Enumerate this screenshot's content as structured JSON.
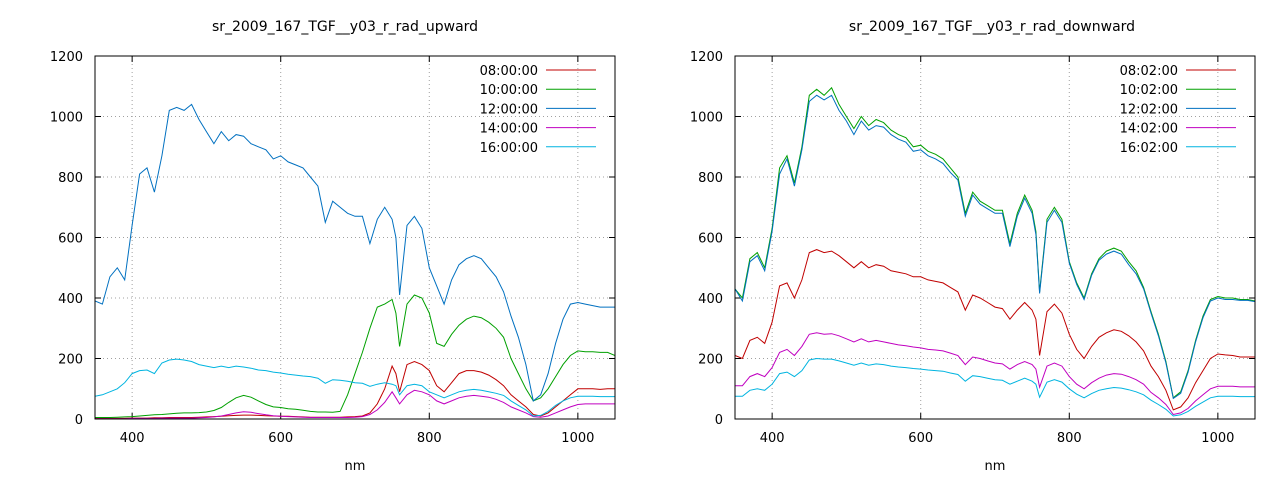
{
  "chart_data": [
    {
      "type": "line",
      "title": "sr_2009_167_TGF__y03_r_rad_upward",
      "xlabel": "nm",
      "ylabel": "",
      "xlim": [
        350,
        1050
      ],
      "ylim": [
        0,
        1200
      ],
      "x_ticks": [
        400,
        600,
        800,
        1000
      ],
      "y_ticks": [
        0,
        200,
        400,
        600,
        800,
        1000,
        1200
      ],
      "grid": true,
      "legend": "top-right",
      "x": [
        350,
        360,
        370,
        380,
        390,
        400,
        410,
        420,
        430,
        440,
        450,
        460,
        470,
        480,
        490,
        500,
        510,
        520,
        530,
        540,
        550,
        560,
        570,
        580,
        590,
        600,
        610,
        620,
        630,
        640,
        650,
        660,
        670,
        680,
        690,
        700,
        710,
        720,
        730,
        740,
        750,
        755,
        760,
        770,
        780,
        790,
        800,
        810,
        820,
        830,
        840,
        850,
        860,
        870,
        880,
        890,
        900,
        910,
        920,
        930,
        940,
        950,
        960,
        970,
        980,
        990,
        1000,
        1010,
        1020,
        1030,
        1040,
        1050
      ],
      "series": [
        {
          "name": "08:00:00",
          "color": "#c00000",
          "values": [
            2,
            2,
            2,
            2,
            2,
            3,
            3,
            3,
            4,
            4,
            5,
            5,
            5,
            5,
            6,
            7,
            8,
            9,
            11,
            12,
            13,
            13,
            12,
            11,
            10,
            9,
            9,
            8,
            7,
            6,
            6,
            6,
            6,
            6,
            7,
            8,
            10,
            20,
            50,
            100,
            175,
            150,
            90,
            180,
            190,
            180,
            160,
            110,
            90,
            120,
            150,
            160,
            160,
            155,
            145,
            130,
            110,
            80,
            60,
            40,
            15,
            10,
            20,
            40,
            60,
            80,
            100,
            100,
            100,
            98,
            100,
            100
          ]
        },
        {
          "name": "10:00:00",
          "color": "#00a000",
          "values": [
            5,
            5,
            5,
            6,
            7,
            8,
            10,
            12,
            14,
            15,
            17,
            19,
            20,
            20,
            21,
            23,
            28,
            38,
            55,
            70,
            78,
            72,
            60,
            48,
            40,
            38,
            34,
            32,
            29,
            25,
            23,
            23,
            22,
            25,
            80,
            150,
            220,
            300,
            370,
            380,
            395,
            350,
            240,
            380,
            410,
            400,
            350,
            250,
            240,
            280,
            310,
            330,
            340,
            335,
            320,
            300,
            270,
            200,
            150,
            100,
            60,
            70,
            100,
            140,
            180,
            210,
            225,
            222,
            222,
            220,
            220,
            210
          ]
        },
        {
          "name": "12:00:00",
          "color": "#0070c0",
          "values": [
            390,
            380,
            470,
            500,
            460,
            640,
            810,
            830,
            750,
            870,
            1020,
            1030,
            1020,
            1040,
            990,
            950,
            910,
            950,
            920,
            940,
            935,
            910,
            900,
            890,
            860,
            870,
            850,
            840,
            830,
            800,
            770,
            650,
            720,
            700,
            680,
            670,
            670,
            580,
            660,
            700,
            660,
            600,
            410,
            640,
            670,
            630,
            500,
            440,
            380,
            460,
            510,
            530,
            540,
            530,
            500,
            470,
            420,
            340,
            270,
            180,
            60,
            80,
            150,
            250,
            330,
            380,
            385,
            380,
            375,
            370,
            370,
            370
          ]
        },
        {
          "name": "14:00:00",
          "color": "#c000c0",
          "values": [
            1,
            1,
            1,
            1,
            1,
            2,
            2,
            2,
            2,
            3,
            3,
            3,
            3,
            3,
            4,
            5,
            7,
            10,
            15,
            20,
            24,
            22,
            18,
            14,
            11,
            9,
            8,
            7,
            6,
            5,
            5,
            5,
            5,
            5,
            5,
            6,
            8,
            15,
            30,
            55,
            90,
            70,
            50,
            80,
            95,
            90,
            80,
            60,
            50,
            60,
            70,
            75,
            78,
            75,
            72,
            65,
            55,
            40,
            30,
            20,
            8,
            6,
            10,
            20,
            30,
            40,
            48,
            50,
            50,
            50,
            50,
            50
          ]
        },
        {
          "name": "16:00:00",
          "color": "#00b4e0",
          "values": [
            75,
            80,
            90,
            100,
            120,
            150,
            160,
            162,
            150,
            185,
            195,
            198,
            195,
            190,
            180,
            175,
            170,
            175,
            170,
            175,
            172,
            168,
            162,
            160,
            155,
            152,
            148,
            145,
            142,
            140,
            135,
            118,
            130,
            128,
            125,
            120,
            118,
            108,
            115,
            120,
            115,
            110,
            80,
            110,
            115,
            110,
            90,
            80,
            70,
            80,
            90,
            95,
            98,
            95,
            90,
            85,
            78,
            60,
            45,
            30,
            10,
            12,
            25,
            45,
            60,
            70,
            75,
            75,
            75,
            74,
            74,
            74
          ]
        }
      ]
    },
    {
      "type": "line",
      "title": "sr_2009_167_TGF__y03_r_rad_downward",
      "xlabel": "nm",
      "ylabel": "",
      "xlim": [
        350,
        1050
      ],
      "ylim": [
        0,
        1200
      ],
      "x_ticks": [
        400,
        600,
        800,
        1000
      ],
      "y_ticks": [
        0,
        200,
        400,
        600,
        800,
        1000,
        1200
      ],
      "grid": true,
      "legend": "top-right",
      "x": [
        350,
        360,
        370,
        380,
        390,
        400,
        410,
        420,
        430,
        440,
        450,
        460,
        470,
        480,
        490,
        500,
        510,
        520,
        530,
        540,
        550,
        560,
        570,
        580,
        590,
        600,
        610,
        620,
        630,
        640,
        650,
        660,
        670,
        680,
        690,
        700,
        710,
        720,
        730,
        740,
        750,
        755,
        760,
        770,
        780,
        790,
        800,
        810,
        820,
        830,
        840,
        850,
        860,
        870,
        880,
        890,
        900,
        910,
        920,
        930,
        940,
        950,
        960,
        970,
        980,
        990,
        1000,
        1010,
        1020,
        1030,
        1040,
        1050
      ],
      "series": [
        {
          "name": "08:02:00",
          "color": "#c00000",
          "values": [
            210,
            200,
            260,
            270,
            250,
            320,
            440,
            450,
            400,
            460,
            550,
            560,
            550,
            555,
            540,
            520,
            500,
            520,
            500,
            510,
            505,
            490,
            485,
            480,
            470,
            470,
            460,
            455,
            450,
            435,
            420,
            360,
            410,
            400,
            385,
            370,
            365,
            330,
            360,
            385,
            360,
            330,
            210,
            355,
            380,
            350,
            280,
            230,
            200,
            240,
            270,
            285,
            295,
            290,
            275,
            255,
            225,
            175,
            140,
            95,
            30,
            40,
            70,
            120,
            160,
            200,
            215,
            212,
            210,
            205,
            205,
            205
          ]
        },
        {
          "name": "10:02:00",
          "color": "#00a000",
          "values": [
            430,
            400,
            530,
            550,
            500,
            630,
            830,
            870,
            780,
            900,
            1070,
            1090,
            1070,
            1095,
            1040,
            1000,
            960,
            1000,
            970,
            990,
            980,
            955,
            940,
            930,
            900,
            905,
            885,
            875,
            860,
            830,
            800,
            680,
            750,
            720,
            705,
            690,
            690,
            580,
            680,
            740,
            690,
            620,
            420,
            660,
            700,
            660,
            520,
            450,
            400,
            480,
            530,
            555,
            565,
            555,
            520,
            490,
            435,
            355,
            280,
            190,
            70,
            90,
            160,
            260,
            340,
            395,
            405,
            400,
            400,
            395,
            395,
            390
          ]
        },
        {
          "name": "12:02:00",
          "color": "#0070c0",
          "values": [
            430,
            390,
            520,
            540,
            490,
            620,
            810,
            860,
            770,
            890,
            1050,
            1070,
            1055,
            1070,
            1020,
            985,
            940,
            985,
            955,
            970,
            965,
            940,
            925,
            915,
            885,
            890,
            870,
            860,
            845,
            815,
            790,
            670,
            740,
            710,
            695,
            680,
            680,
            570,
            670,
            730,
            680,
            610,
            415,
            650,
            690,
            650,
            515,
            445,
            395,
            475,
            525,
            545,
            555,
            545,
            510,
            480,
            430,
            350,
            275,
            185,
            68,
            85,
            155,
            255,
            335,
            390,
            400,
            395,
            395,
            392,
            392,
            388
          ]
        },
        {
          "name": "14:02:00",
          "color": "#c000c0",
          "values": [
            110,
            110,
            140,
            150,
            140,
            170,
            220,
            230,
            210,
            240,
            280,
            285,
            280,
            282,
            275,
            265,
            255,
            265,
            255,
            260,
            255,
            250,
            245,
            242,
            238,
            235,
            230,
            228,
            225,
            218,
            210,
            180,
            205,
            200,
            192,
            185,
            182,
            165,
            180,
            190,
            180,
            165,
            105,
            175,
            185,
            175,
            140,
            115,
            100,
            120,
            135,
            145,
            150,
            148,
            140,
            130,
            115,
            88,
            70,
            48,
            15,
            20,
            35,
            60,
            80,
            100,
            108,
            108,
            108,
            106,
            106,
            106
          ]
        },
        {
          "name": "16:02:00",
          "color": "#00b4e0",
          "values": [
            75,
            75,
            95,
            100,
            95,
            115,
            150,
            155,
            140,
            160,
            195,
            200,
            198,
            198,
            192,
            185,
            178,
            185,
            178,
            182,
            180,
            175,
            172,
            170,
            167,
            165,
            162,
            160,
            158,
            152,
            147,
            125,
            143,
            140,
            135,
            130,
            128,
            115,
            125,
            135,
            125,
            115,
            72,
            122,
            130,
            122,
            100,
            82,
            70,
            84,
            95,
            100,
            104,
            102,
            97,
            90,
            80,
            62,
            48,
            32,
            10,
            14,
            25,
            42,
            56,
            70,
            75,
            75,
            75,
            74,
            74,
            74
          ]
        }
      ]
    }
  ]
}
